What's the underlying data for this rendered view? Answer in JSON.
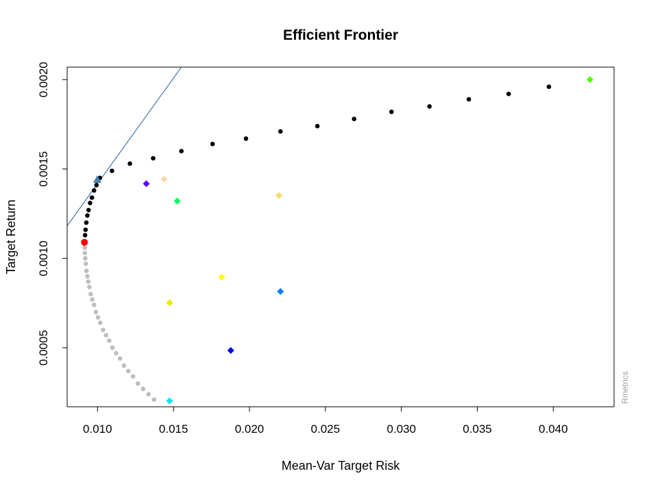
{
  "chart_data": {
    "type": "scatter",
    "title": "Efficient Frontier",
    "xlabel": "Mean-Var Target Risk",
    "ylabel": "Target Return",
    "watermark": "Rmetrics",
    "xlim": [
      0.008,
      0.044
    ],
    "ylim": [
      0.00017,
      0.00207
    ],
    "x_ticks": [
      0.01,
      0.015,
      0.02,
      0.025,
      0.03,
      0.035,
      0.04
    ],
    "x_tick_labels": [
      "0.010",
      "0.015",
      "0.020",
      "0.025",
      "0.030",
      "0.035",
      "0.040"
    ],
    "y_ticks": [
      0.0005,
      0.001,
      0.0015,
      0.002
    ],
    "y_tick_labels": [
      "0.0005",
      "0.0010",
      "0.0015",
      "0.0020"
    ],
    "grid": false,
    "colors": {
      "efficient": "#000000",
      "inefficient": "#bebebe",
      "min_variance": "#ff0000",
      "tangency_line": "#1f5f9f",
      "tangency_point": "#4682b4"
    },
    "efficient_frontier": {
      "x": [
        0.00915,
        0.00918,
        0.00921,
        0.00926,
        0.00933,
        0.00941,
        0.00951,
        0.00963,
        0.00977,
        0.00993,
        0.01016,
        0.01095,
        0.01213,
        0.01366,
        0.01552,
        0.01757,
        0.01977,
        0.02204,
        0.02447,
        0.02689,
        0.02935,
        0.03185,
        0.03444,
        0.03706,
        0.03971
      ],
      "y": [
        0.00109,
        0.00113,
        0.00116,
        0.0012,
        0.00124,
        0.00127,
        0.00131,
        0.00134,
        0.00138,
        0.00141,
        0.00145,
        0.00149,
        0.00153,
        0.00156,
        0.0016,
        0.00164,
        0.00167,
        0.00171,
        0.00174,
        0.00178,
        0.00182,
        0.00185,
        0.00189,
        0.00192,
        0.00196
      ]
    },
    "inefficient_frontier": {
      "x": [
        0.00916,
        0.00917,
        0.00919,
        0.00923,
        0.00927,
        0.00933,
        0.00939,
        0.00946,
        0.00955,
        0.00965,
        0.00977,
        0.00989,
        0.01003,
        0.01018,
        0.01036,
        0.01056,
        0.01077,
        0.01098,
        0.01122,
        0.01148,
        0.01174,
        0.01203,
        0.01234,
        0.01266,
        0.013,
        0.01336,
        0.01372
      ],
      "y": [
        0.00106,
        0.00103,
        0.001,
        0.00097,
        0.00093,
        0.0009,
        0.00087,
        0.00084,
        0.0008,
        0.00077,
        0.00074,
        0.0007,
        0.00067,
        0.00064,
        0.0006,
        0.00057,
        0.00054,
        0.0005,
        0.00047,
        0.00044,
        0.0004,
        0.00037,
        0.00034,
        0.0003,
        0.00027,
        0.00024,
        0.00021
      ]
    },
    "min_variance_point": {
      "x": 0.00914,
      "y": 0.00109
    },
    "tangency_point": {
      "x": 0.00998,
      "y": 0.001442
    },
    "tangency_line": {
      "x": [
        0.008,
        0.01552
      ],
      "y": [
        0.001182,
        0.00207
      ]
    },
    "assets": [
      {
        "x": 0.01321,
        "y": 0.001418,
        "color": "#5a00ff"
      },
      {
        "x": 0.01437,
        "y": 0.001443,
        "color": "#ffd8a8"
      },
      {
        "x": 0.01524,
        "y": 0.001321,
        "color": "#00ff55"
      },
      {
        "x": 0.02194,
        "y": 0.001352,
        "color": "#ffd966"
      },
      {
        "x": 0.01818,
        "y": 0.000895,
        "color": "#ffff00"
      },
      {
        "x": 0.02204,
        "y": 0.000815,
        "color": "#0080ff"
      },
      {
        "x": 0.01475,
        "y": 0.000752,
        "color": "#e8ea00"
      },
      {
        "x": 0.01877,
        "y": 0.000485,
        "color": "#0000ff"
      },
      {
        "x": 0.01474,
        "y": 0.000203,
        "color": "#00e5ff"
      },
      {
        "x": 0.04241,
        "y": 0.002,
        "color": "#55ff00"
      }
    ]
  }
}
